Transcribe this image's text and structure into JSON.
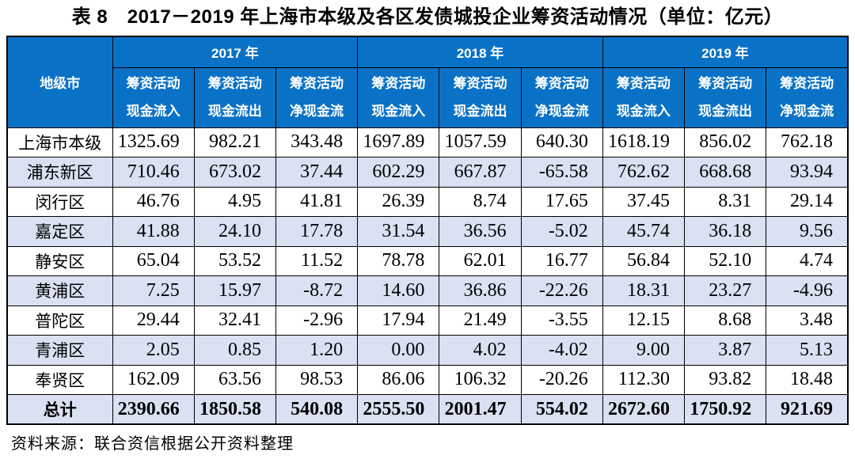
{
  "page": {
    "title": "表 8　2017－2019 年上海市本级及各区发债城投企业筹资活动情况（单位：亿元）",
    "source_note": "资料来源：联合资信根据公开资料整理"
  },
  "colors": {
    "header_bg": "#0a72c6",
    "header_text": "#ffffff",
    "stripe_bg": "#d9e1f2",
    "border": "#000000"
  },
  "table": {
    "region_header": "地级市",
    "year_groups": [
      {
        "label": "2017 年",
        "columns": [
          {
            "line1": "筹资活动",
            "line2": "现金流入"
          },
          {
            "line1": "筹资活动",
            "line2": "现金流出"
          },
          {
            "line1": "筹资活动",
            "line2": "净现金流"
          }
        ]
      },
      {
        "label": "2018 年",
        "columns": [
          {
            "line1": "筹资活动",
            "line2": "现金流入"
          },
          {
            "line1": "筹资活动",
            "line2": "现金流出"
          },
          {
            "line1": "筹资活动",
            "line2": "净现金流"
          }
        ]
      },
      {
        "label": "2019 年",
        "columns": [
          {
            "line1": "筹资活动",
            "line2": "现金流入"
          },
          {
            "line1": "筹资活动",
            "line2": "现金流出"
          },
          {
            "line1": "筹资活动",
            "line2": "净现金流"
          }
        ]
      }
    ],
    "rows": [
      {
        "region": "上海市本级",
        "values": [
          "1325.69",
          "982.21",
          "343.48",
          "1697.89",
          "1057.59",
          "640.30",
          "1618.19",
          "856.02",
          "762.18"
        ]
      },
      {
        "region": "浦东新区",
        "values": [
          "710.46",
          "673.02",
          "37.44",
          "602.29",
          "667.87",
          "-65.58",
          "762.62",
          "668.68",
          "93.94"
        ]
      },
      {
        "region": "闵行区",
        "values": [
          "46.76",
          "4.95",
          "41.81",
          "26.39",
          "8.74",
          "17.65",
          "37.45",
          "8.31",
          "29.14"
        ]
      },
      {
        "region": "嘉定区",
        "values": [
          "41.88",
          "24.10",
          "17.78",
          "31.54",
          "36.56",
          "-5.02",
          "45.74",
          "36.18",
          "9.56"
        ]
      },
      {
        "region": "静安区",
        "values": [
          "65.04",
          "53.52",
          "11.52",
          "78.78",
          "62.01",
          "16.77",
          "56.84",
          "52.10",
          "4.74"
        ]
      },
      {
        "region": "黄浦区",
        "values": [
          "7.25",
          "15.97",
          "-8.72",
          "14.60",
          "36.86",
          "-22.26",
          "18.31",
          "23.27",
          "-4.96"
        ]
      },
      {
        "region": "普陀区",
        "values": [
          "29.44",
          "32.41",
          "-2.96",
          "17.94",
          "21.49",
          "-3.55",
          "12.15",
          "8.68",
          "3.48"
        ]
      },
      {
        "region": "青浦区",
        "values": [
          "2.05",
          "0.85",
          "1.20",
          "0.00",
          "4.02",
          "-4.02",
          "9.00",
          "3.87",
          "5.13"
        ]
      },
      {
        "region": "奉贤区",
        "values": [
          "162.09",
          "63.56",
          "98.53",
          "86.06",
          "106.32",
          "-20.26",
          "112.30",
          "93.82",
          "18.48"
        ]
      }
    ],
    "total_row": {
      "region": "总计",
      "values": [
        "2390.66",
        "1850.58",
        "540.08",
        "2555.50",
        "2001.47",
        "554.02",
        "2672.60",
        "1750.92",
        "921.69"
      ]
    }
  }
}
